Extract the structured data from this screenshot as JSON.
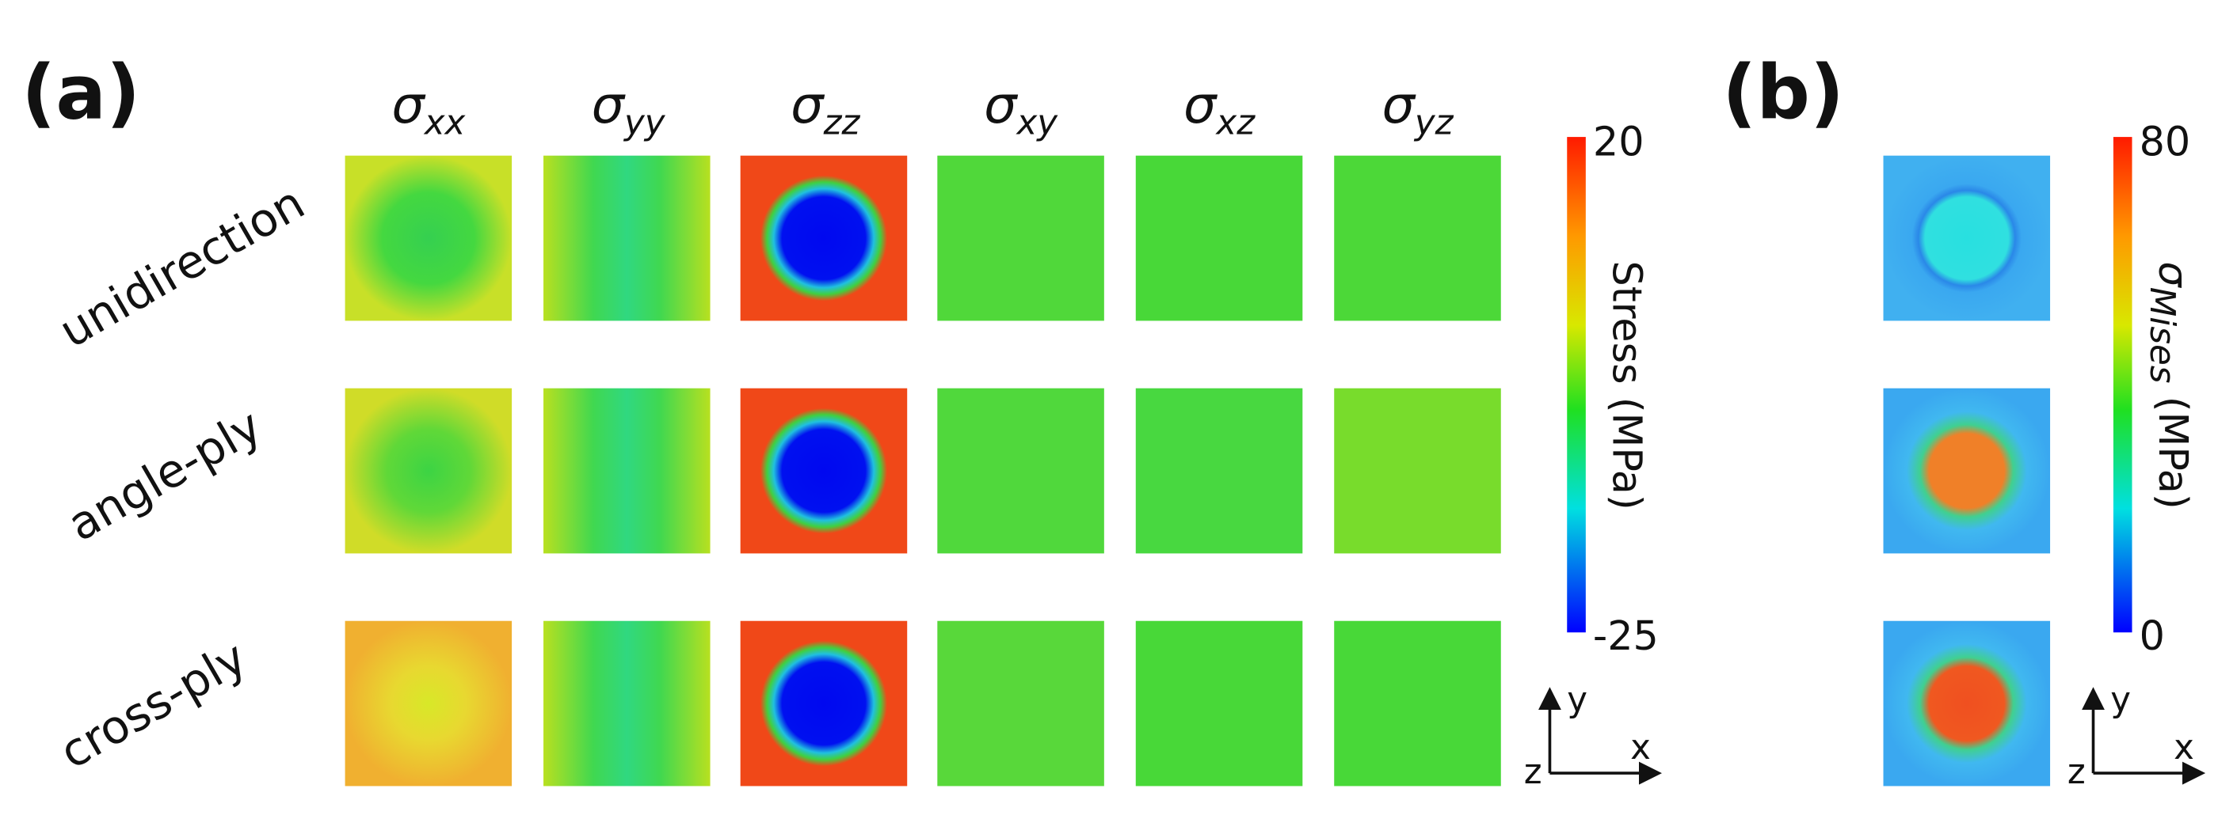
{
  "panels": [
    {
      "label": "(a)",
      "columns": [
        {
          "symbol": "σ",
          "subscript": "xx"
        },
        {
          "symbol": "σ",
          "subscript": "yy"
        },
        {
          "symbol": "σ",
          "subscript": "zz"
        },
        {
          "symbol": "σ",
          "subscript": "xy"
        },
        {
          "symbol": "σ",
          "subscript": "xz"
        },
        {
          "symbol": "σ",
          "subscript": "yz"
        }
      ],
      "rows": [
        "unidirection",
        "angle-ply",
        "cross-ply"
      ],
      "colorbar": {
        "max": "20",
        "min": "-25",
        "label": "Stress (MPa)"
      },
      "axes": {
        "y": "y",
        "z": "z",
        "x": "x"
      }
    },
    {
      "label": "(b)",
      "colorbar": {
        "max": "80",
        "min": "0",
        "label_symbol": "σ",
        "label_subscript": "Mises",
        "label_unit": "(MPa)"
      },
      "axes": {
        "y": "y",
        "z": "z",
        "x": "x"
      }
    }
  ]
}
